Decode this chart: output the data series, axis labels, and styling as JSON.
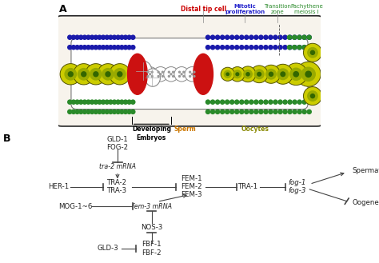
{
  "panel_A_label": "A",
  "panel_B_label": "B",
  "gonad_fill": "#f7f3ec",
  "gonad_edge": "#222222",
  "inner_tube_fill": "white",
  "inner_tube_edge": "#666666",
  "dtc_color": "#cc1111",
  "blue_dot": "#1a1aaa",
  "green_dot": "#2a8a2a",
  "oocyte_outer": "#cccc00",
  "oocyte_mid": "#99aa00",
  "oocyte_nuc": "#336600",
  "sperm_edge": "#888888",
  "embryo_edge": "#888888",
  "label_dtc": "Distal tip cell",
  "label_dtc_color": "#cc0000",
  "label_mitotic": "Mitotic\nproliferation",
  "label_mitotic_color": "#2222cc",
  "label_transition": "Transition\nzone",
  "label_transition_color": "#2a8a2a",
  "label_pachytene": "Pachythene\nmeiosis I",
  "label_pachytene_color": "#2a8a2a",
  "label_embryos": "Developing\nEmbryos",
  "label_sperm": "Sperm",
  "label_sperm_color": "#cc7700",
  "label_oocytes": "Oocytes",
  "label_oocytes_color": "#888800",
  "arrow_color": "#444444",
  "text_color": "#222222",
  "bg": "#ffffff"
}
